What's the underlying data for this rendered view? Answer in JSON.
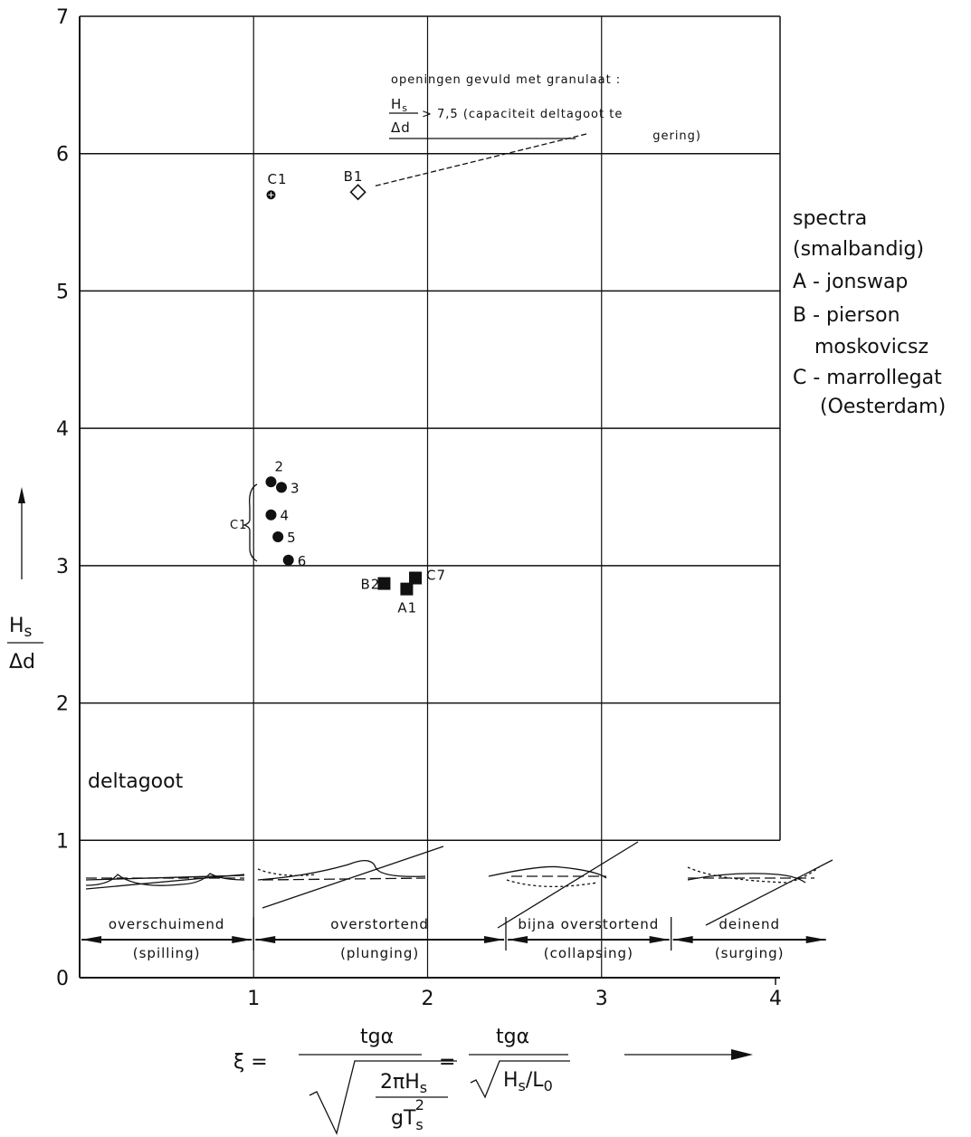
{
  "chart_data": {
    "type": "scatter",
    "xlim": [
      0,
      4
    ],
    "ylim": [
      0,
      7
    ],
    "xticks": [
      1,
      2,
      3,
      4
    ],
    "yticks": [
      0,
      1,
      2,
      3,
      4,
      5,
      6,
      7
    ],
    "grid": true,
    "color": "#111111",
    "series": [
      {
        "marker": "circle-cross",
        "x": [
          1.1
        ],
        "y": [
          5.7
        ],
        "labels": [
          "C1"
        ]
      },
      {
        "marker": "diamond-open",
        "x": [
          1.6
        ],
        "y": [
          5.72
        ],
        "labels": [
          "B1"
        ]
      },
      {
        "marker": "circle",
        "x": [
          1.1,
          1.16,
          1.1,
          1.14,
          1.2
        ],
        "y": [
          3.61,
          3.57,
          3.37,
          3.21,
          3.04
        ],
        "labels": [
          "2",
          "3",
          "4",
          "5",
          "6"
        ]
      },
      {
        "marker": "square",
        "x": [
          1.75,
          1.88,
          1.93
        ],
        "y": [
          2.87,
          2.83,
          2.91
        ],
        "labels": [
          "B2",
          "A1",
          "C7"
        ]
      }
    ],
    "group_label": "C1",
    "annotation": {
      "line1": "openingen  gevuld  met  granulaat :",
      "num": "H",
      "sub": "s",
      "den": "Δd",
      "line2": "> 7,5  (capaciteit  deltagoot  te",
      "line3": "gering)"
    },
    "region_label": "deltagoot",
    "legend_text": [
      "spectra",
      "(smalbandig)",
      "A - jonswap",
      "B - pierson",
      "moskovicsz",
      "C - marrollegat",
      "(Oesterdam)"
    ],
    "breaker_types": [
      {
        "name": "overschuimend",
        "english": "(spilling)",
        "range": [
          0,
          1
        ]
      },
      {
        "name": "overstortend",
        "english": "(plunging)",
        "range": [
          1,
          2.45
        ]
      },
      {
        "name": "bijna overstortend",
        "english": "(collapsing)",
        "range": [
          2.45,
          3.4
        ]
      },
      {
        "name": "deinend",
        "english": "(surging)",
        "range": [
          3.4,
          4.3
        ]
      }
    ],
    "ylabel": {
      "num": "H",
      "sub": "s",
      "den": "Δd"
    },
    "xlabel": {
      "xi": "ξ =",
      "num1": "tgα",
      "den1a": "2πH",
      "den1b": "s",
      "den1c": "gT",
      "den1d": "s",
      "den1e": "2",
      "eq": "=",
      "num2": "tgα",
      "den2a": "H",
      "den2b": "s",
      "den2c": "/L",
      "den2d": "0"
    }
  }
}
